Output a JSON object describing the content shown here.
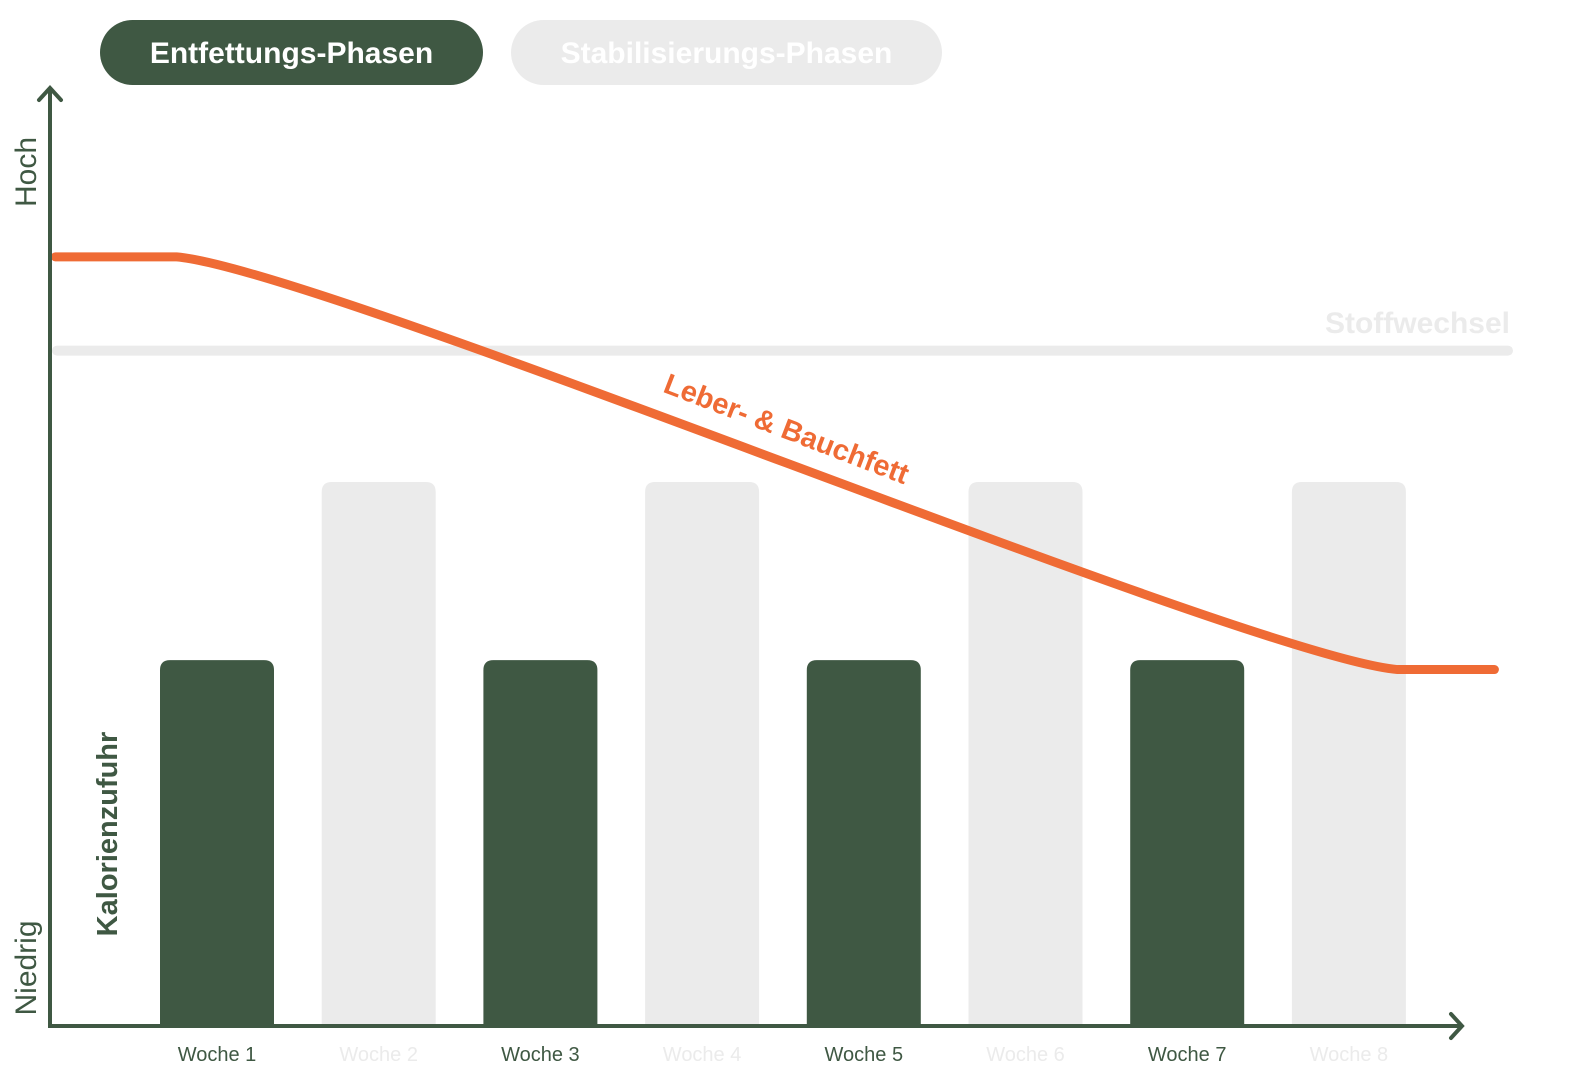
{
  "tabs": [
    {
      "label": "Entfettungs-Phasen",
      "active": true
    },
    {
      "label": "Stabilisierungs-Phasen",
      "active": false
    }
  ],
  "colors": {
    "dark_green": "#3f5843",
    "light_gray": "#ebebeb",
    "orange": "#ef6b35",
    "white": "#ffffff"
  },
  "chart_data": {
    "type": "bar",
    "title": "",
    "xlabel": "",
    "ylabel": "Kalorienzufuhr",
    "y_axis_low_label": "Niedrig",
    "y_axis_high_label": "Hoch",
    "ylim": [
      0,
      100
    ],
    "categories": [
      "Woche 1",
      "Woche 2",
      "Woche 3",
      "Woche 4",
      "Woche 5",
      "Woche 6",
      "Woche 7",
      "Woche 8"
    ],
    "values": [
      39,
      58,
      39,
      58,
      39,
      58,
      39,
      58
    ],
    "phases": [
      "Entfettungs-Phasen",
      "Stabilisierungs-Phasen",
      "Entfettungs-Phasen",
      "Stabilisierungs-Phasen",
      "Entfettungs-Phasen",
      "Stabilisierungs-Phasen",
      "Entfettungs-Phasen",
      "Stabilisierungs-Phasen"
    ],
    "reference_line": {
      "label": "Stoffwechsel",
      "value": 72
    },
    "curve": {
      "label": "Leber- & Bauchfett",
      "points": [
        [
          0,
          82
        ],
        [
          0.75,
          82
        ],
        [
          8.3,
          38
        ],
        [
          8.9,
          38
        ]
      ]
    },
    "grid": false,
    "legend": "none"
  }
}
